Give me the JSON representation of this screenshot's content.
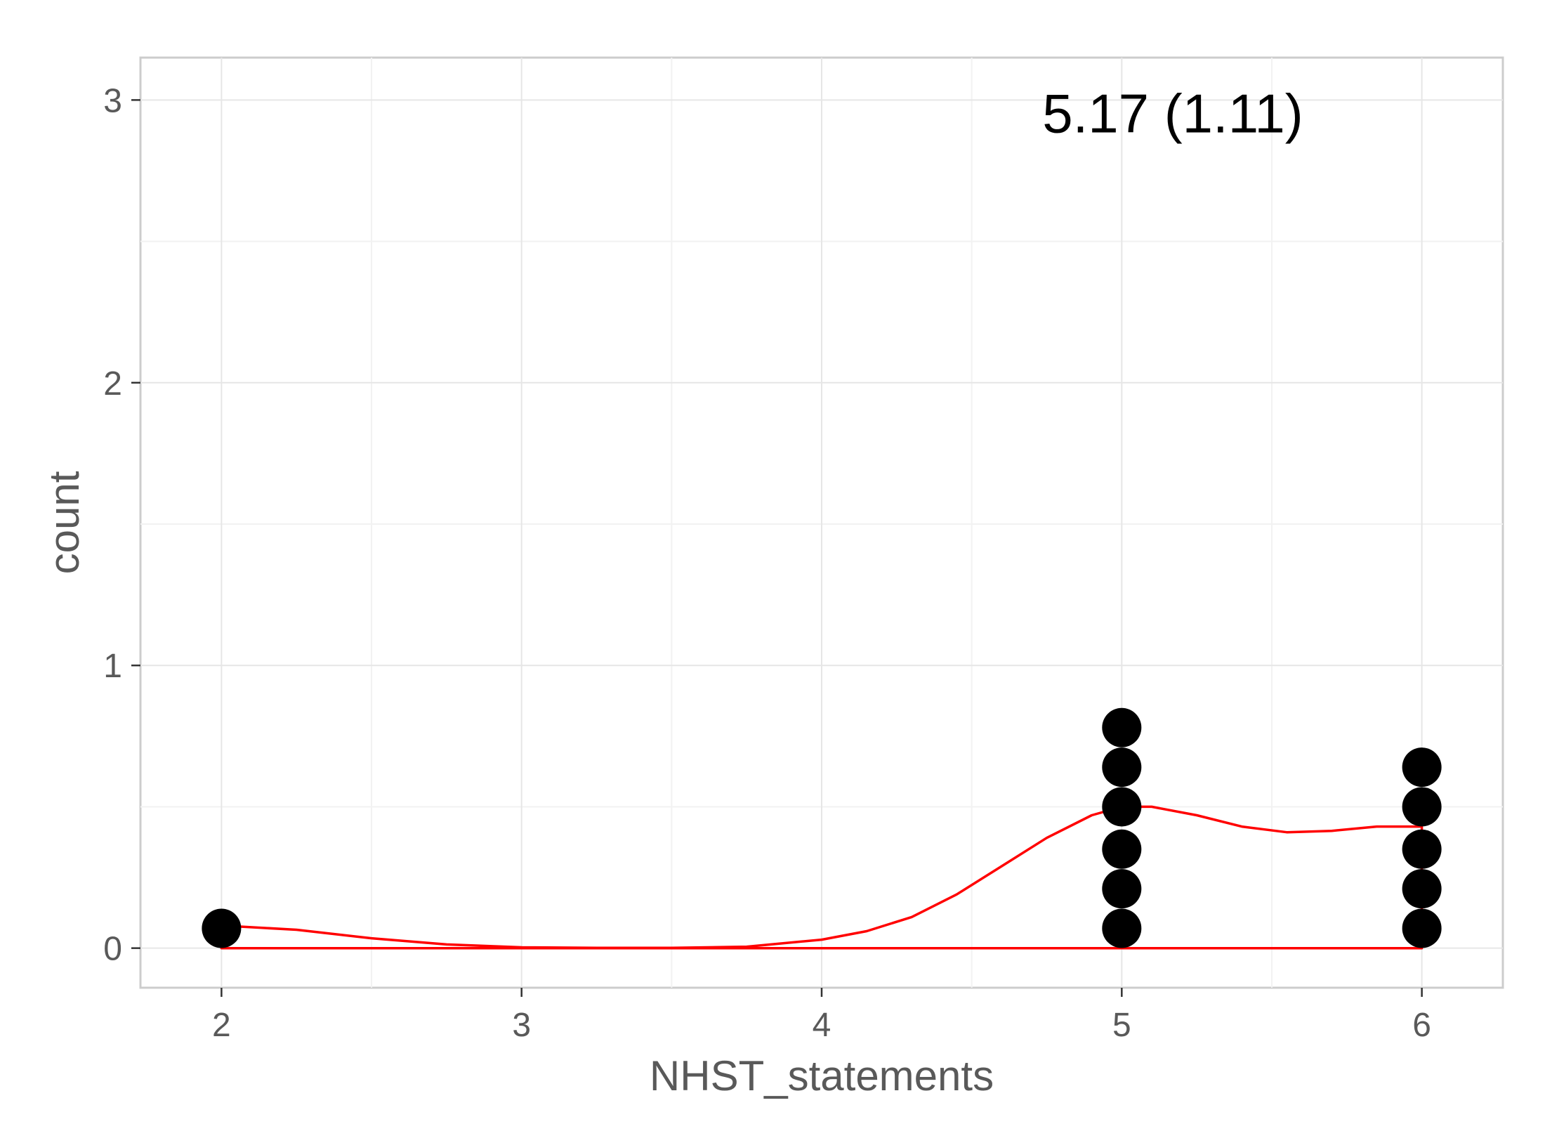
{
  "chart_data": {
    "type": "scatter",
    "subtype": "dotplot-with-density",
    "xlabel": "NHST_statements",
    "ylabel": "count",
    "xlim": [
      1.73,
      6.27
    ],
    "ylim": [
      -0.14,
      3.15
    ],
    "x_ticks": [
      2,
      3,
      4,
      5,
      6
    ],
    "x_tick_labels": [
      "2",
      "3",
      "4",
      "5",
      "6"
    ],
    "y_ticks": [
      0,
      1,
      2,
      3
    ],
    "y_tick_labels": [
      "0",
      "1",
      "2",
      "3"
    ],
    "x_minor_ticks": [
      2.5,
      3.5,
      4.5,
      5.5
    ],
    "y_minor_ticks": [
      0.5,
      1.5,
      2.5
    ],
    "grid": true,
    "annotation": {
      "text": "5.17 (1.11)",
      "x": 5.17,
      "y": 2.95
    },
    "dots": {
      "color": "#000000",
      "stacks": [
        {
          "x": 2,
          "count": 1
        },
        {
          "x": 5,
          "count": 6
        },
        {
          "x": 6,
          "count": 5
        }
      ],
      "y_centers": [
        0.07,
        0.21,
        0.35,
        0.5,
        0.64,
        0.78
      ]
    },
    "density": {
      "color": "#ff0000",
      "x": [
        2,
        2.25,
        2.5,
        2.75,
        3,
        3.25,
        3.5,
        3.75,
        4,
        4.15,
        4.3,
        4.45,
        4.6,
        4.75,
        4.9,
        5,
        5.1,
        5.25,
        5.4,
        5.55,
        5.7,
        5.85,
        6
      ],
      "y": [
        0.08,
        0.065,
        0.035,
        0.013,
        0.003,
        0.001,
        0.001,
        0.005,
        0.03,
        0.06,
        0.11,
        0.19,
        0.29,
        0.39,
        0.47,
        0.5,
        0.5,
        0.47,
        0.43,
        0.41,
        0.415,
        0.43,
        0.43
      ]
    }
  }
}
